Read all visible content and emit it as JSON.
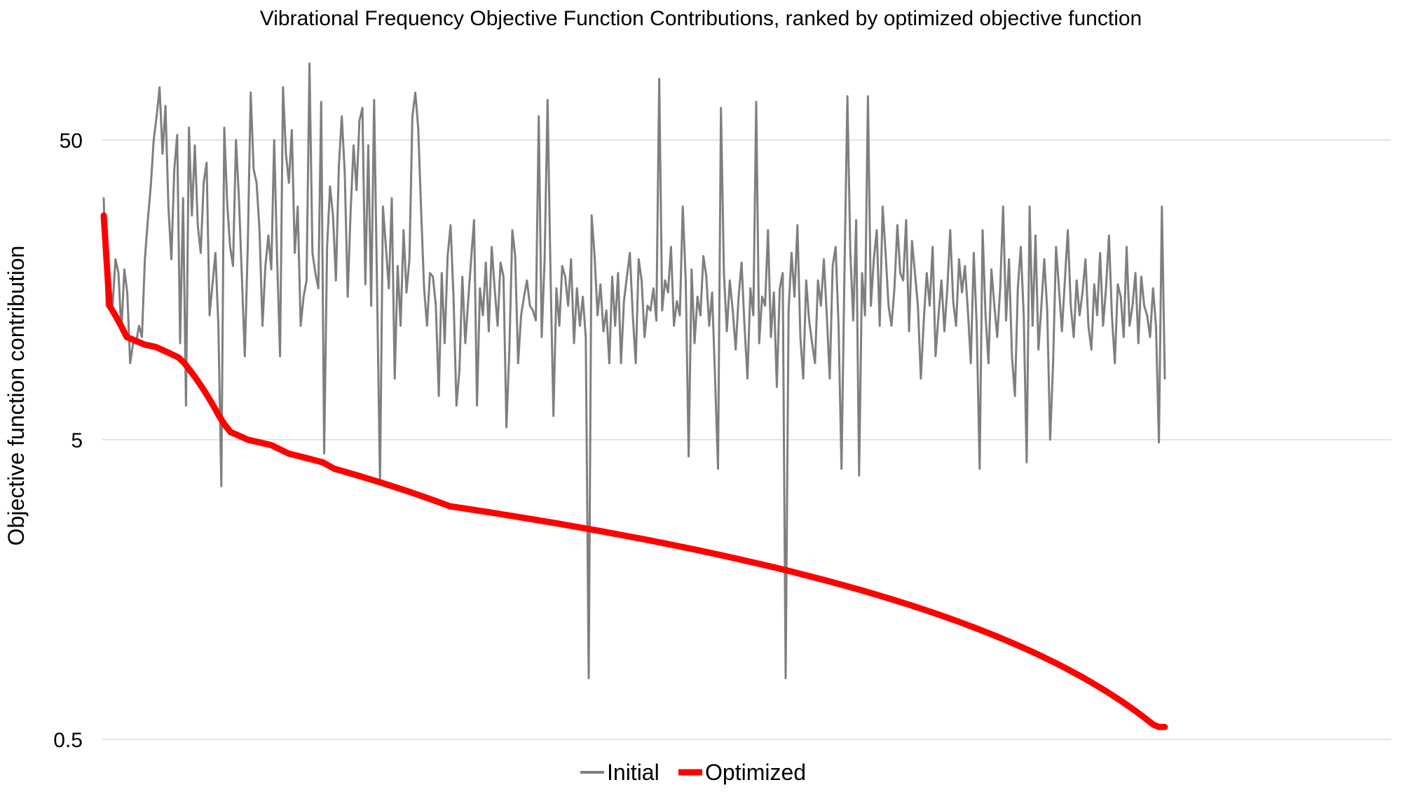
{
  "chart_data": {
    "type": "line",
    "title": "Vibrational Frequency Objective Function Contributions, ranked by optimized objective function",
    "xlabel": "",
    "ylabel": "Objective function contribution",
    "y_scale": "log",
    "ylim": [
      0.5,
      200
    ],
    "y_ticks": [
      {
        "value": 0.5,
        "label": "0.5"
      },
      {
        "value": 5,
        "label": "5"
      },
      {
        "value": 50,
        "label": "50"
      }
    ],
    "grid": true,
    "legend_position": "bottom",
    "series": [
      {
        "name": "Initial",
        "color": "#7f7f7f",
        "x_step": 10,
        "values": [
          32.0,
          14.0,
          17.0,
          14.0,
          20.0,
          18.0,
          11.5,
          18.5,
          15.5,
          9.0,
          10.5,
          10.5,
          12.0,
          11.0,
          20.0,
          27.0,
          35.0,
          50.0,
          60.0,
          75.0,
          45.0,
          65.0,
          30.0,
          20.0,
          40.0,
          52.0,
          10.5,
          32.0,
          6.5,
          55.0,
          28.0,
          48.0,
          26.0,
          21.0,
          36.0,
          42.0,
          13.0,
          16.5,
          21.0,
          12.0,
          3.5,
          55.0,
          31.0,
          22.0,
          19.0,
          50.0,
          32.0,
          17.5,
          9.5,
          22.0,
          72.0,
          40.0,
          36.0,
          25.0,
          12.0,
          19.0,
          24.0,
          18.5,
          50.0,
          20.0,
          9.5,
          75.0,
          45.0,
          36.0,
          54.0,
          21.0,
          30.0,
          12.0,
          15.0,
          17.0,
          90.0,
          21.0,
          18.0,
          16.0,
          67.0,
          4.5,
          22.0,
          35.0,
          28.0,
          17.0,
          41.0,
          60.0,
          39.0,
          15.0,
          29.0,
          48.0,
          34.0,
          58.0,
          64.0,
          16.5,
          48.0,
          14.0,
          68.0,
          16.0,
          3.6,
          30.0,
          22.0,
          16.0,
          32.0,
          8.0,
          19.0,
          12.0,
          25.0,
          15.5,
          20.0,
          60.0,
          72.0,
          55.0,
          29.0,
          16.0,
          12.0,
          18.0,
          17.5,
          14.0,
          7.0,
          18.0,
          10.5,
          20.5,
          26.0,
          15.0,
          6.5,
          8.5,
          17.5,
          10.5,
          14.5,
          20.0,
          27.0,
          6.5,
          16.0,
          13.0,
          19.5,
          11.5,
          22.0,
          16.0,
          12.0,
          19.5,
          17.5,
          5.5,
          10.0,
          25.0,
          20.5,
          9.0,
          13.0,
          15.0,
          17.0,
          14.0,
          13.5,
          12.5,
          60.0,
          11.0,
          20.0,
          68.0,
          18.0,
          6.0,
          16.0,
          12.0,
          19.0,
          17.5,
          14.0,
          20.0,
          10.5,
          16.0,
          12.0,
          15.0,
          11.0,
          0.8,
          28.0,
          20.5,
          13.0,
          16.5,
          11.5,
          13.5,
          9.0,
          17.5,
          12.0,
          18.0,
          9.0,
          14.5,
          17.5,
          21.0,
          13.0,
          9.0,
          20.0,
          17.0,
          11.0,
          14.0,
          13.5,
          16.0,
          12.5,
          80.0,
          13.5,
          17.0,
          15.5,
          22.0,
          12.0,
          14.5,
          13.0,
          30.0,
          17.0,
          4.4,
          18.5,
          10.5,
          15.0,
          13.0,
          20.5,
          17.5,
          12.0,
          15.5,
          8.0,
          4.0,
          64.0,
          18.0,
          11.5,
          17.0,
          13.5,
          10.0,
          15.0,
          19.5,
          12.0,
          8.0,
          16.0,
          13.0,
          67.0,
          10.5,
          15.0,
          14.0,
          25.0,
          11.0,
          15.5,
          7.5,
          16.0,
          18.0,
          0.8,
          13.5,
          21.0,
          15.0,
          26.0,
          11.0,
          8.0,
          17.0,
          12.5,
          10.5,
          9.0,
          17.0,
          14.0,
          20.0,
          13.0,
          8.0,
          19.0,
          22.0,
          12.0,
          4.0,
          18.0,
          70.0,
          21.0,
          12.5,
          27.0,
          3.8,
          18.0,
          13.0,
          70.0,
          14.0,
          20.0,
          25.0,
          12.0,
          30.0,
          21.0,
          14.0,
          12.0,
          16.0,
          26.0,
          18.0,
          17.0,
          27.0,
          11.5,
          23.0,
          18.0,
          14.0,
          8.0,
          12.5,
          18.0,
          14.0,
          22.0,
          9.5,
          13.0,
          17.0,
          11.5,
          16.0,
          25.0,
          14.5,
          12.0,
          20.0,
          15.5,
          19.0,
          13.5,
          9.0,
          21.0,
          12.0,
          4.0,
          25.0,
          13.0,
          9.0,
          18.5,
          14.0,
          11.0,
          16.0,
          30.0,
          12.5,
          20.0,
          9.5,
          7.0,
          16.0,
          22.0,
          13.0,
          4.2,
          30.0,
          12.0,
          24.0,
          10.0,
          14.0,
          20.0,
          13.5,
          5.0,
          9.0,
          22.0,
          16.0,
          11.5,
          17.0,
          25.0,
          14.0,
          11.0,
          17.0,
          13.0,
          15.5,
          20.0,
          12.0,
          10.0,
          16.5,
          13.0,
          21.0,
          12.0,
          16.0,
          24.0,
          13.0,
          9.0,
          16.5,
          15.0,
          11.0,
          22.0,
          12.0,
          14.0,
          18.0,
          10.5,
          17.5,
          14.0,
          13.0,
          11.0,
          16.0,
          12.0,
          4.9,
          30.0,
          8.0
        ]
      },
      {
        "name": "Optimized",
        "color": "#ff0000",
        "x_step": 10,
        "values": [
          28.0,
          14.0,
          13.0,
          12.0,
          11.0,
          10.8,
          10.6,
          10.4,
          10.3,
          10.2,
          10.0,
          9.8,
          9.6,
          9.4,
          9.0,
          8.5,
          8.0,
          7.5,
          7.0,
          6.5,
          6.0,
          5.6,
          5.3,
          5.2,
          5.1,
          5.0,
          4.95,
          4.9,
          4.85,
          4.8,
          4.7,
          4.6,
          4.5,
          4.45,
          4.4,
          4.35,
          4.3,
          4.25,
          4.2,
          4.1,
          4.0,
          3.95,
          3.9,
          3.85,
          3.8,
          3.75,
          3.7,
          3.65,
          3.6,
          3.55,
          3.5,
          3.45,
          3.4,
          3.35,
          3.3,
          3.25,
          3.2,
          3.15,
          3.1,
          3.05,
          3.0,
          2.98,
          2.96,
          2.94,
          2.92,
          2.9,
          2.88,
          2.86,
          2.84,
          2.82,
          2.8,
          2.78,
          2.76,
          2.74,
          2.72,
          2.7,
          2.68,
          2.66,
          2.64,
          2.62,
          2.6,
          2.58,
          2.56,
          2.54,
          2.52,
          2.5,
          2.48,
          2.46,
          2.44,
          2.42,
          2.4,
          2.38,
          2.36,
          2.34,
          2.32,
          2.3,
          2.28,
          2.26,
          2.24,
          2.22,
          2.2,
          2.18,
          2.16,
          2.14,
          2.12,
          2.1,
          2.08,
          2.06,
          2.04,
          2.02,
          2.0,
          1.98,
          1.96,
          1.94,
          1.92,
          1.9,
          1.88,
          1.86,
          1.84,
          1.82,
          1.8,
          1.78,
          1.76,
          1.74,
          1.72,
          1.7,
          1.68,
          1.66,
          1.64,
          1.62,
          1.6,
          1.58,
          1.56,
          1.54,
          1.52,
          1.5,
          1.48,
          1.46,
          1.44,
          1.42,
          1.4,
          1.38,
          1.36,
          1.34,
          1.32,
          1.3,
          1.28,
          1.26,
          1.24,
          1.22,
          1.2,
          1.18,
          1.16,
          1.14,
          1.12,
          1.1,
          1.08,
          1.06,
          1.04,
          1.02,
          1.0,
          0.98,
          0.96,
          0.94,
          0.92,
          0.9,
          0.88,
          0.86,
          0.84,
          0.82,
          0.8,
          0.78,
          0.76,
          0.74,
          0.72,
          0.7,
          0.68,
          0.66,
          0.64,
          0.62,
          0.6,
          0.58,
          0.56,
          0.55,
          0.55
        ]
      }
    ]
  }
}
